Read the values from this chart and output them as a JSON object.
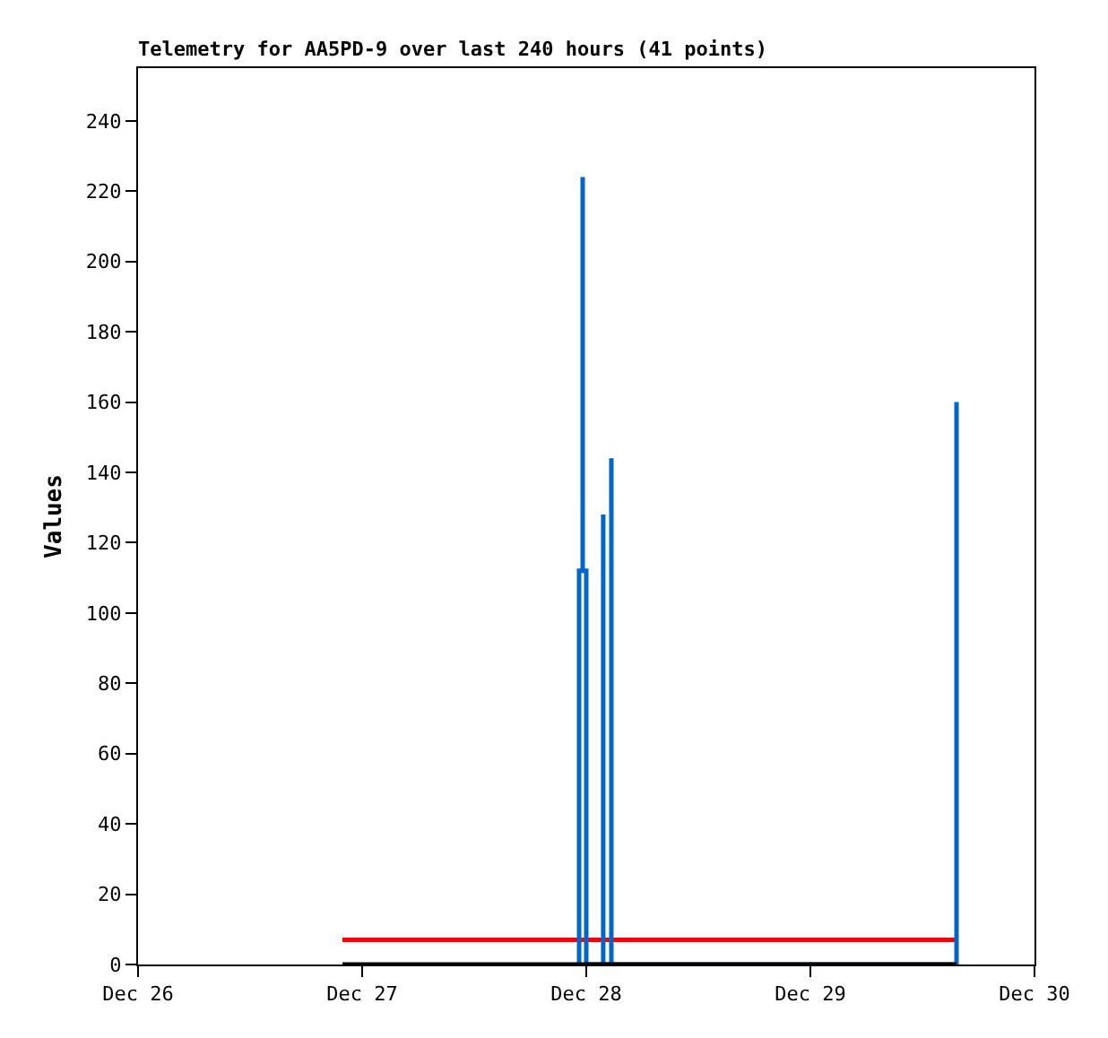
{
  "chart_data": {
    "type": "line",
    "title": "Telemetry for AA5PD-9 over last 240 hours (41 points)",
    "ylabel": "Values",
    "xlim": [
      "--12-26",
      "--12-30"
    ],
    "xticks": [
      {
        "value": "--12-26",
        "label": "Dec 26"
      },
      {
        "value": "--12-27",
        "label": "Dec 27"
      },
      {
        "value": "--12-28",
        "label": "Dec 28"
      },
      {
        "value": "--12-29",
        "label": "Dec 29"
      },
      {
        "value": "--12-30",
        "label": "Dec 30"
      }
    ],
    "ylim": [
      0,
      255
    ],
    "yticks": [
      0,
      20,
      40,
      60,
      80,
      100,
      120,
      140,
      160,
      180,
      200,
      220,
      240
    ],
    "marker": "none",
    "line_style": "solid",
    "series": [
      {
        "color": "#ff0000",
        "x": [
          "--12-26T21:53",
          "--12-29T15:39"
        ],
        "values": [
          7,
          7
        ]
      },
      {
        "color": "#0066cc",
        "x": [
          "--12-27T23:14",
          "--12-27T23:14",
          "--12-27T23:37",
          "--12-27T23:37",
          "--12-27T23:37",
          "--12-28T00:00",
          "--12-28T00:00",
          "--12-28T01:49",
          "--12-28T01:49",
          "--12-28T01:49",
          "--12-28T01:49",
          "--12-28T02:41",
          "--12-28T02:41",
          "--12-28T02:41",
          "--12-29T15:39",
          "--12-29T15:39",
          "--12-29T15:39",
          "--12-29T15:39"
        ],
        "values": [
          0,
          112,
          112,
          224,
          112,
          112,
          0,
          0,
          64,
          128,
          0,
          0,
          144,
          0,
          0,
          80,
          160,
          0
        ]
      },
      {
        "color": "#000000",
        "x": [
          "--12-26T21:53",
          "--12-29T15:39"
        ],
        "values": [
          0,
          0
        ]
      }
    ]
  }
}
